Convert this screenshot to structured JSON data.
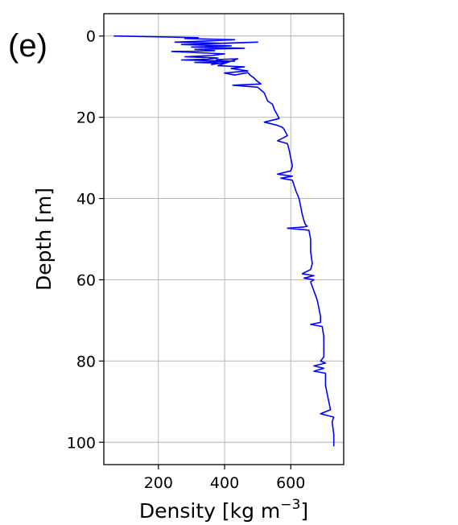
{
  "panel_label": "(e)",
  "chart_data": {
    "type": "line",
    "title": "",
    "xlabel": "Density [kg m",
    "xlabel_superscript": "−3",
    "xlabel_suffix": "]",
    "ylabel": "Depth [m]",
    "xlim": [
      35,
      760
    ],
    "ylim": [
      105.5,
      -5.5
    ],
    "y_inverted": true,
    "grid": true,
    "x_ticks": [
      200,
      400,
      600
    ],
    "y_ticks": [
      0,
      20,
      40,
      60,
      80,
      100
    ],
    "series": [
      {
        "color": "#0000ff",
        "x": [
          65,
          210,
          320,
          280,
          430,
          350,
          250,
          400,
          500,
          270,
          420,
          300,
          460,
          310,
          370,
          240,
          320,
          400,
          360,
          280,
          380,
          350,
          270,
          430,
          310,
          390,
          360,
          410,
          375,
          440,
          380,
          460,
          420,
          470,
          400,
          430,
          470,
          480,
          490,
          495,
          505,
          510,
          425,
          500,
          520,
          530,
          545,
          550,
          560,
          565,
          520,
          560,
          575,
          580,
          590,
          560,
          590,
          595,
          600,
          605,
          600,
          560,
          605,
          570,
          605,
          615,
          625,
          630,
          635,
          640,
          645,
          650,
          640,
          590,
          655,
          660,
          660,
          665,
          660,
          635,
          670,
          640,
          670,
          660,
          680,
          685,
          690,
          690,
          660,
          695,
          700,
          700,
          700,
          690,
          705,
          670,
          700,
          670,
          705,
          705,
          710,
          715,
          720,
          690,
          730,
          725,
          730,
          730
        ],
        "y": [
          0,
          0.2,
          0.4,
          0.6,
          0.9,
          1.2,
          1.5,
          1.8,
          1.5,
          2.1,
          2.4,
          2.7,
          3.0,
          3.3,
          3.6,
          3.8,
          4.1,
          4.4,
          4.8,
          5.1,
          5.4,
          5.7,
          5.9,
          6.2,
          6.5,
          6.7,
          7.0,
          6.4,
          5.8,
          5.6,
          7.3,
          7.6,
          8.0,
          8.6,
          9.1,
          9.6,
          9.0,
          9.8,
          10.4,
          10.9,
          11.5,
          11.8,
          12.1,
          12.6,
          14.0,
          16.0,
          16.8,
          18.0,
          19.5,
          20.3,
          21.2,
          22.0,
          22.5,
          23.0,
          24.5,
          25.8,
          26.5,
          28.0,
          30.0,
          32.0,
          33.2,
          34.0,
          34.5,
          35.0,
          35.5,
          38.0,
          40.0,
          42.0,
          44.0,
          45.5,
          46.5,
          46.8,
          47.0,
          47.3,
          47.8,
          50.0,
          53.0,
          56.0,
          57.5,
          58.5,
          59.0,
          59.6,
          60.0,
          60.5,
          65.0,
          67.0,
          69.0,
          70.5,
          71.0,
          71.5,
          74.0,
          76.0,
          79.0,
          80.0,
          80.5,
          81.2,
          81.8,
          82.5,
          83.0,
          86.0,
          88.0,
          90.0,
          92.0,
          93.0,
          93.8,
          95.0,
          98.0,
          101.0
        ]
      }
    ]
  }
}
